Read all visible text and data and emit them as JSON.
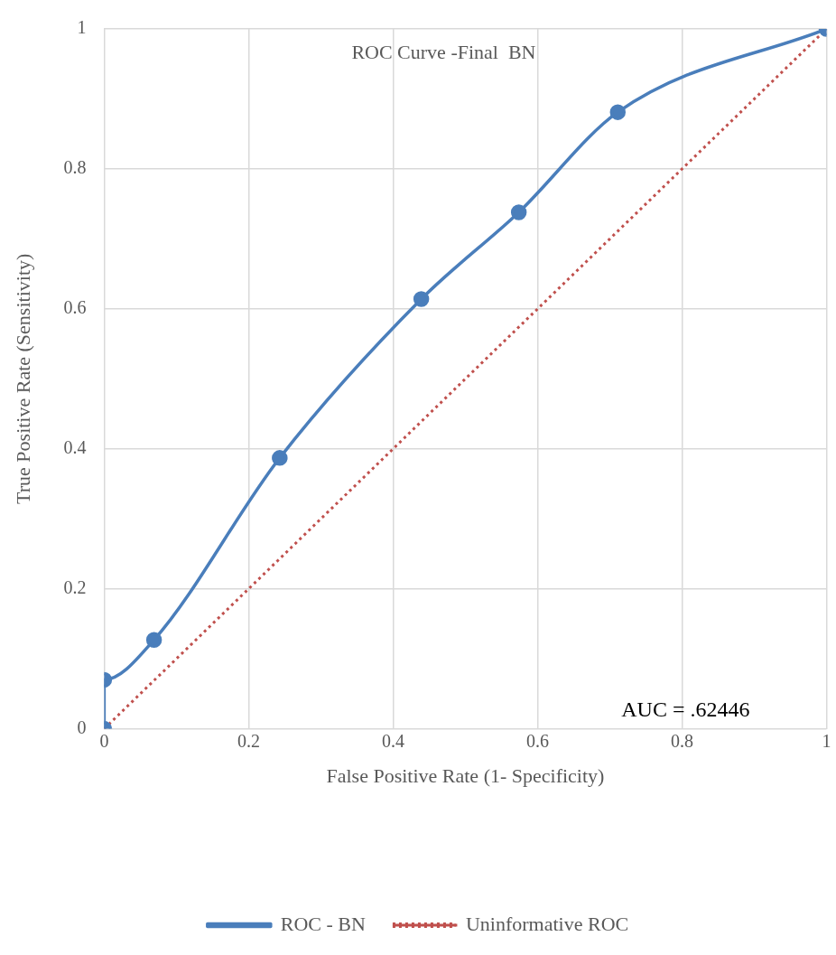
{
  "chart_data": {
    "type": "line",
    "title": "ROC Curve -Final  BN",
    "xlabel": "False Positive Rate (1- Specificity)",
    "ylabel": "True Positive Rate (Sensitivity)",
    "annotations": [
      "AUC = .62446"
    ],
    "series": [
      {
        "name": "ROC - BN",
        "color": "#4a7ebb",
        "x": [
          0,
          0,
          0.069,
          0.243,
          0.439,
          0.574,
          0.711,
          1
        ],
        "values": [
          0,
          0.07,
          0.127,
          0.387,
          0.614,
          0.738,
          0.881,
          1
        ],
        "marker": "circle",
        "line_style": "solid"
      },
      {
        "name": "Uninformative ROC",
        "color": "#c0504d",
        "x": [
          0,
          1
        ],
        "values": [
          0,
          1
        ],
        "marker": "none",
        "line_style": "dotted"
      }
    ],
    "xlim": [
      0,
      1
    ],
    "xticks": [
      0,
      0.2,
      0.4,
      0.6,
      0.8,
      1
    ],
    "ylim": [
      0,
      1
    ],
    "yticks": [
      0,
      0.2,
      0.4,
      0.6,
      0.8,
      1
    ],
    "grid": true,
    "legend": "bottom"
  }
}
